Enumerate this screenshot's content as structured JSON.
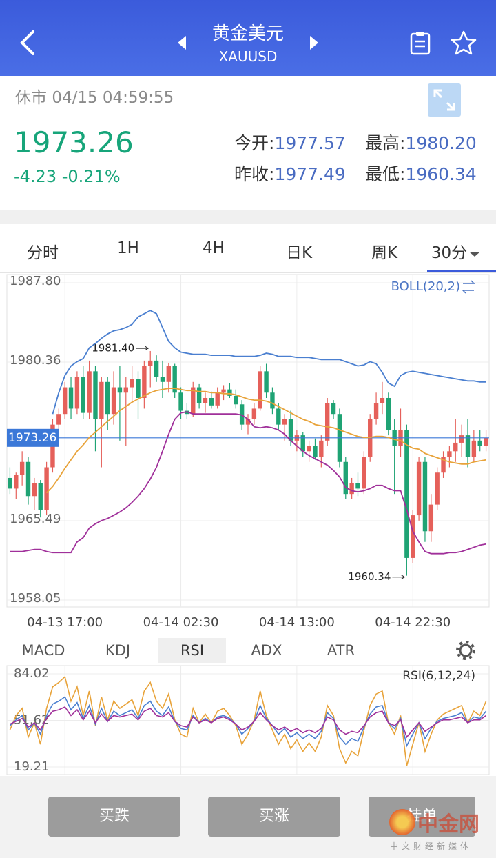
{
  "header": {
    "title": "黄金美元",
    "symbol": "XAUUSD"
  },
  "quote": {
    "status": "休市",
    "time": "04/15 04:59:55",
    "price": "1973.26",
    "change": "-4.23",
    "change_pct": "-0.21%",
    "stats": [
      {
        "label": "今开:",
        "value": "1977.57"
      },
      {
        "label": "最高:",
        "value": "1980.20"
      },
      {
        "label": "昨收:",
        "value": "1977.49"
      },
      {
        "label": "最低:",
        "value": "1960.34"
      }
    ]
  },
  "tabs": [
    {
      "label": "分时"
    },
    {
      "label": "1H"
    },
    {
      "label": "4H"
    },
    {
      "label": "日K"
    },
    {
      "label": "周K"
    },
    {
      "label": "30分",
      "active": true
    }
  ],
  "chart_data": [
    {
      "type": "candlestick",
      "indicator": "BOLL(20,2)",
      "current_price": 1973.26,
      "up_color": "#e5605a",
      "down_color": "#1fa374",
      "grid": true,
      "ylim": [
        1958.05,
        1987.8
      ],
      "yticks": [
        {
          "value": 1987.8,
          "label": "1987.80"
        },
        {
          "value": 1980.36,
          "label": "1980.36"
        },
        {
          "value": 1965.49,
          "label": "1965.49"
        },
        {
          "value": 1958.05,
          "label": "1958.05"
        }
      ],
      "annotations": [
        {
          "value": 1981.4,
          "label": "1981.40"
        },
        {
          "value": 1960.34,
          "label": "1960.34"
        }
      ],
      "categories": [
        null,
        null,
        null,
        null,
        null,
        null,
        null,
        null,
        null,
        "04-13 17:00",
        null,
        null,
        null,
        null,
        null,
        null,
        null,
        null,
        null,
        null,
        null,
        null,
        null,
        null,
        null,
        null,
        null,
        null,
        "04-14 02:30",
        null,
        null,
        null,
        null,
        null,
        null,
        null,
        null,
        null,
        null,
        null,
        null,
        null,
        null,
        null,
        null,
        null,
        null,
        "04-14 13:00",
        null,
        null,
        null,
        null,
        null,
        null,
        null,
        null,
        null,
        null,
        null,
        null,
        null,
        null,
        null,
        null,
        null,
        null,
        "04-14 22:30",
        null,
        null,
        null,
        null,
        null,
        null,
        null,
        null,
        null,
        null,
        null,
        null
      ],
      "candles": [
        [
          1969.5,
          1970.5,
          1968.0,
          1968.5
        ],
        [
          1968.5,
          1970.0,
          1967.5,
          1969.8
        ],
        [
          1969.8,
          1972.0,
          1968.8,
          1971.0
        ],
        [
          1971.0,
          1971.5,
          1967.0,
          1967.8
        ],
        [
          1967.8,
          1969.5,
          1966.5,
          1969.0
        ],
        [
          1969.0,
          1969.3,
          1965.8,
          1966.5
        ],
        [
          1966.5,
          1971.0,
          1966.0,
          1970.5
        ],
        [
          1970.5,
          1975.0,
          1970.0,
          1974.5
        ],
        [
          1974.5,
          1976.0,
          1973.8,
          1975.5
        ],
        [
          1975.5,
          1978.5,
          1975.0,
          1978.0
        ],
        [
          1978.0,
          1979.0,
          1975.0,
          1976.0
        ],
        [
          1976.0,
          1979.5,
          1975.5,
          1979.0
        ],
        [
          1979.0,
          1980.0,
          1975.0,
          1975.6
        ],
        [
          1975.6,
          1980.5,
          1975.0,
          1979.5
        ],
        [
          1979.5,
          1980.0,
          1972.0,
          1975.0
        ],
        [
          1975.0,
          1979.0,
          1970.5,
          1978.5
        ],
        [
          1978.5,
          1979.0,
          1974.0,
          1975.5
        ],
        [
          1975.5,
          1979.5,
          1974.5,
          1978.0
        ],
        [
          1978.0,
          1980.0,
          1973.0,
          1977.5
        ],
        [
          1977.5,
          1979.0,
          1972.5,
          1978.0
        ],
        [
          1978.0,
          1980.0,
          1976.5,
          1978.8
        ],
        [
          1978.8,
          1979.5,
          1975.0,
          1977.0
        ],
        [
          1977.0,
          1980.5,
          1976.0,
          1980.0
        ],
        [
          1980.0,
          1981.4,
          1978.0,
          1980.5
        ],
        [
          1980.5,
          1981.0,
          1978.5,
          1979.0
        ],
        [
          1979.0,
          1980.5,
          1977.0,
          1978.5
        ],
        [
          1978.5,
          1980.3,
          1977.5,
          1980.0
        ],
        [
          1980.0,
          1980.2,
          1977.0,
          1977.5
        ],
        [
          1977.5,
          1978.0,
          1975.0,
          1975.8
        ],
        [
          1975.8,
          1976.5,
          1975.0,
          1975.5
        ],
        [
          1975.5,
          1978.5,
          1975.2,
          1978.0
        ],
        [
          1978.0,
          1978.3,
          1976.0,
          1976.5
        ],
        [
          1976.5,
          1977.5,
          1975.6,
          1977.0
        ],
        [
          1977.0,
          1977.6,
          1976.0,
          1976.3
        ],
        [
          1976.3,
          1978.0,
          1976.0,
          1977.5
        ],
        [
          1977.5,
          1978.2,
          1976.8,
          1977.8
        ],
        [
          1977.8,
          1978.4,
          1977.0,
          1977.2
        ],
        [
          1977.2,
          1977.8,
          1976.0,
          1976.4
        ],
        [
          1976.4,
          1976.8,
          1974.0,
          1974.5
        ],
        [
          1974.5,
          1975.5,
          1973.6,
          1975.0
        ],
        [
          1975.0,
          1976.5,
          1974.5,
          1976.0
        ],
        [
          1976.0,
          1980.0,
          1975.8,
          1979.5
        ],
        [
          1979.5,
          1980.2,
          1977.0,
          1977.5
        ],
        [
          1977.5,
          1978.0,
          1975.5,
          1976.0
        ],
        [
          1976.0,
          1976.5,
          1974.0,
          1974.5
        ],
        [
          1974.5,
          1975.5,
          1973.0,
          1975.0
        ],
        [
          1975.0,
          1975.8,
          1972.5,
          1973.0
        ],
        [
          1973.0,
          1974.0,
          1972.0,
          1973.5
        ],
        [
          1973.5,
          1973.8,
          1971.5,
          1972.0
        ],
        [
          1972.0,
          1973.0,
          1971.0,
          1972.5
        ],
        [
          1972.5,
          1973.2,
          1971.2,
          1971.5
        ],
        [
          1971.5,
          1973.5,
          1970.5,
          1973.0
        ],
        [
          1973.0,
          1977.0,
          1972.5,
          1976.5
        ],
        [
          1976.5,
          1976.8,
          1975.0,
          1975.5
        ],
        [
          1975.5,
          1976.0,
          1970.5,
          1971.0
        ],
        [
          1971.0,
          1971.5,
          1967.5,
          1968.0
        ],
        [
          1968.0,
          1969.5,
          1967.5,
          1969.0
        ],
        [
          1969.0,
          1970.0,
          1967.8,
          1968.5
        ],
        [
          1968.5,
          1972.0,
          1968.0,
          1971.5
        ],
        [
          1971.5,
          1975.5,
          1971.0,
          1975.0
        ],
        [
          1975.0,
          1977.5,
          1974.5,
          1976.5
        ],
        [
          1976.5,
          1978.5,
          1975.5,
          1977.0
        ],
        [
          1977.0,
          1977.5,
          1973.5,
          1974.0
        ],
        [
          1974.0,
          1975.0,
          1968.0,
          1972.5
        ],
        [
          1972.5,
          1976.0,
          1971.5,
          1974.0
        ],
        [
          1974.0,
          1974.5,
          1960.34,
          1962.0
        ],
        [
          1962.0,
          1966.5,
          1961.5,
          1966.0
        ],
        [
          1966.0,
          1971.5,
          1965.5,
          1971.0
        ],
        [
          1971.0,
          1971.5,
          1963.5,
          1964.5
        ],
        [
          1964.5,
          1968.0,
          1963.5,
          1967.0
        ],
        [
          1967.0,
          1970.5,
          1966.5,
          1970.0
        ],
        [
          1970.0,
          1972.0,
          1969.5,
          1971.5
        ],
        [
          1971.5,
          1972.5,
          1970.5,
          1972.0
        ],
        [
          1972.0,
          1975.0,
          1971.0,
          1972.8
        ],
        [
          1972.8,
          1974.5,
          1971.5,
          1973.5
        ],
        [
          1973.5,
          1975.0,
          1970.5,
          1971.5
        ],
        [
          1971.5,
          1974.0,
          1971.0,
          1973.0
        ],
        [
          1973.0,
          1974.0,
          1972.0,
          1972.5
        ],
        [
          1972.5,
          1974.0,
          1972.0,
          1973.26
        ]
      ],
      "series": [
        {
          "color": "#4a7fd0",
          "values": [
            null,
            null,
            null,
            null,
            null,
            null,
            null,
            1975.5,
            1977.5,
            1979.1,
            1980.0,
            1980.4,
            1980.7,
            1981.7,
            1982.1,
            1982.6,
            1983.0,
            1983.3,
            1983.4,
            1983.6,
            1983.9,
            1984.6,
            1984.9,
            1985.2,
            1984.9,
            1983.6,
            1982.3,
            1981.7,
            1981.3,
            1981.2,
            1981.1,
            1981.1,
            1981.1,
            1981.0,
            1981.0,
            1981.0,
            1981.0,
            1980.9,
            1980.9,
            1980.9,
            1980.9,
            1981.0,
            1981.2,
            1981.1,
            1980.9,
            1980.9,
            1980.9,
            1980.8,
            1980.8,
            1980.8,
            1980.7,
            1980.6,
            1980.6,
            1980.6,
            1980.6,
            1980.4,
            1980.2,
            1980.0,
            1980.1,
            1980.4,
            1980.2,
            1979.4,
            1978.4,
            1978.1,
            1979.1,
            1979.4,
            1979.5,
            1979.4,
            1979.3,
            1979.2,
            1979.1,
            1979.0,
            1978.9,
            1978.8,
            1978.7,
            1978.6,
            1978.6,
            1978.5,
            1978.5
          ]
        },
        {
          "color": "#e8a33a",
          "values": [
            null,
            null,
            null,
            null,
            null,
            null,
            1968.1,
            1968.7,
            1969.5,
            1970.4,
            1971.2,
            1972.0,
            1972.6,
            1973.3,
            1973.8,
            1974.3,
            1974.8,
            1975.3,
            1975.8,
            1976.2,
            1976.6,
            1976.9,
            1977.2,
            1977.5,
            1977.7,
            1977.8,
            1977.9,
            1977.9,
            1977.8,
            1977.7,
            1977.7,
            1977.6,
            1977.6,
            1977.5,
            1977.5,
            1977.4,
            1977.4,
            1977.3,
            1977.1,
            1976.9,
            1976.8,
            1976.8,
            1976.7,
            1976.5,
            1976.2,
            1975.9,
            1975.6,
            1975.3,
            1975.0,
            1974.8,
            1974.5,
            1974.4,
            1974.3,
            1974.2,
            1974.0,
            1973.8,
            1973.6,
            1973.4,
            1973.3,
            1973.3,
            1973.4,
            1973.4,
            1973.3,
            1973.1,
            1973.0,
            1972.6,
            1972.3,
            1972.2,
            1971.8,
            1971.6,
            1971.4,
            1971.2,
            1971.0,
            1970.9,
            1970.8,
            1970.8,
            1971.0,
            1971.1,
            1971.2
          ]
        },
        {
          "color": "#a0309a",
          "values": [
            1962.6,
            1962.6,
            1962.6,
            1962.7,
            1962.8,
            1962.8,
            1962.6,
            1962.5,
            1962.5,
            1962.5,
            1962.5,
            1963.5,
            1963.9,
            1964.8,
            1965.2,
            1965.5,
            1965.7,
            1966.0,
            1966.3,
            1966.7,
            1967.2,
            1967.8,
            1968.5,
            1969.4,
            1970.5,
            1972.0,
            1973.6,
            1975.0,
            1975.6,
            1975.7,
            1975.5,
            1975.5,
            1975.5,
            1975.5,
            1975.5,
            1975.5,
            1975.5,
            1975.5,
            1975.4,
            1975.0,
            1974.3,
            1974.2,
            1974.3,
            1974.2,
            1974.0,
            1973.6,
            1973.0,
            1972.5,
            1972.0,
            1971.6,
            1971.3,
            1971.0,
            1970.7,
            1970.2,
            1969.6,
            1968.6,
            1968.3,
            1968.2,
            1968.3,
            1968.5,
            1968.8,
            1968.8,
            1968.5,
            1968.3,
            1968.3,
            1966.5,
            1964.5,
            1963.5,
            1962.6,
            1962.4,
            1962.4,
            1962.4,
            1962.5,
            1962.5,
            1962.6,
            1962.8,
            1963.0,
            1963.2,
            1963.3
          ]
        }
      ]
    },
    {
      "type": "line",
      "indicator": "RSI(6,12,24)",
      "ylim": [
        19.21,
        84.02
      ],
      "yticks": [
        {
          "value": 19.21,
          "label": "19.21"
        },
        {
          "value": 51.62,
          "label": "51.62"
        },
        {
          "value": 84.02,
          "label": "84.02"
        }
      ],
      "series": [
        {
          "color": "#e8a33a",
          "values": [
            45,
            55,
            60,
            40,
            50,
            35,
            60,
            75,
            78,
            82,
            65,
            75,
            55,
            72,
            48,
            68,
            52,
            65,
            60,
            63,
            66,
            55,
            72,
            78,
            65,
            60,
            70,
            52,
            42,
            40,
            60,
            50,
            56,
            50,
            58,
            60,
            55,
            48,
            35,
            42,
            52,
            72,
            55,
            45,
            35,
            42,
            32,
            38,
            30,
            36,
            30,
            40,
            62,
            55,
            32,
            22,
            30,
            27,
            45,
            62,
            70,
            72,
            50,
            42,
            55,
            20,
            35,
            50,
            30,
            42,
            52,
            56,
            58,
            60,
            62,
            50,
            58,
            55,
            65
          ]
        },
        {
          "color": "#4a7fd0",
          "values": [
            48,
            52,
            55,
            45,
            50,
            42,
            55,
            63,
            65,
            68,
            59,
            64,
            53,
            62,
            49,
            60,
            51,
            58,
            55,
            57,
            59,
            53,
            62,
            65,
            58,
            55,
            61,
            51,
            46,
            45,
            55,
            50,
            53,
            50,
            54,
            55,
            53,
            49,
            42,
            46,
            51,
            62,
            53,
            48,
            42,
            46,
            40,
            43,
            39,
            42,
            39,
            44,
            57,
            53,
            40,
            35,
            39,
            37,
            47,
            56,
            61,
            62,
            50,
            46,
            53,
            34,
            42,
            50,
            39,
            46,
            51,
            53,
            54,
            55,
            57,
            50,
            54,
            53,
            58
          ]
        },
        {
          "color": "#a0309a",
          "values": [
            49,
            51,
            53,
            47,
            50,
            45,
            53,
            58,
            59,
            61,
            55,
            59,
            52,
            58,
            50,
            56,
            51,
            55,
            54,
            55,
            56,
            52,
            58,
            60,
            55,
            54,
            57,
            51,
            48,
            47,
            54,
            50,
            52,
            50,
            53,
            54,
            52,
            49,
            45,
            47,
            51,
            57,
            52,
            48,
            45,
            47,
            44,
            46,
            43,
            45,
            43,
            46,
            54,
            52,
            45,
            42,
            44,
            43,
            48,
            54,
            57,
            58,
            50,
            48,
            52,
            40,
            45,
            50,
            44,
            47,
            50,
            52,
            52,
            53,
            54,
            50,
            52,
            52,
            55
          ]
        }
      ]
    }
  ],
  "indicator_tabs": [
    {
      "label": "MACD"
    },
    {
      "label": "KDJ"
    },
    {
      "label": "RSI",
      "active": true
    },
    {
      "label": "ADX"
    },
    {
      "label": "ATR"
    }
  ],
  "buttons": [
    "买跌",
    "买涨",
    "挂单"
  ],
  "watermark": {
    "name": "中金网",
    "tagline": "中文财经新媒体"
  }
}
